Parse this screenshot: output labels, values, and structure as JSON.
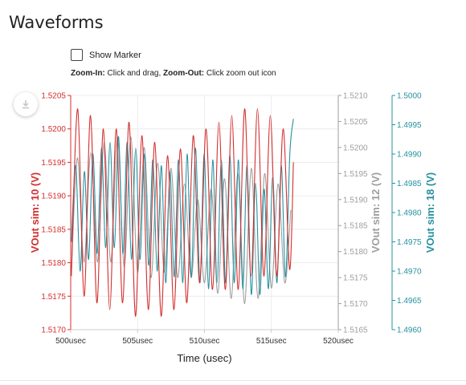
{
  "page": {
    "title": "Waveforms",
    "show_marker_label": "Show Marker",
    "show_marker_checked": false,
    "help_zoom_in_label": "Zoom-In:",
    "help_zoom_in_text": " Click and drag, ",
    "help_zoom_out_label": "Zoom-Out:",
    "help_zoom_out_text": " Click zoom out icon"
  },
  "icons": {
    "download": "download-icon"
  },
  "chart_data": {
    "type": "line",
    "xlabel": "Time (usec)",
    "xlim": [
      500,
      520
    ],
    "x_ticks": [
      500,
      505,
      510,
      515,
      520
    ],
    "x_tick_labels": [
      "500usec",
      "505usec",
      "510usec",
      "515usec",
      "520usec"
    ],
    "grid": true,
    "axes": [
      {
        "id": "y1",
        "side": "left",
        "label": "VOut sim: 10 (V)",
        "color": "#d32f2f",
        "ylim": [
          1.517,
          1.5205
        ],
        "ticks": [
          "1.5170",
          "1.5175",
          "1.5180",
          "1.5185",
          "1.5190",
          "1.5195",
          "1.5200",
          "1.5205"
        ]
      },
      {
        "id": "y2",
        "side": "right",
        "label": "VOut sim: 12 (V)",
        "color": "#9e9e9e",
        "ylim": [
          1.5165,
          1.521
        ],
        "ticks": [
          "1.5165",
          "1.5170",
          "1.5175",
          "1.5180",
          "1.5185",
          "1.5190",
          "1.5195",
          "1.5200",
          "1.5205",
          "1.5210"
        ]
      },
      {
        "id": "y3",
        "side": "right-outer",
        "label": "VOut sim: 18 (V)",
        "color": "#26919f",
        "ylim": [
          1.496,
          1.5
        ],
        "ticks": [
          "1.4960",
          "1.4965",
          "1.4970",
          "1.4975",
          "1.4980",
          "1.4985",
          "1.4990",
          "1.4995",
          "1.5000"
        ]
      }
    ],
    "series": [
      {
        "name": "VOut sim: 10 (V)",
        "axis": "y1",
        "color": "#d32f2f",
        "x": [
          500.05,
          500.52,
          501.0,
          501.48,
          501.96,
          502.44,
          502.92,
          503.4,
          503.88,
          504.36,
          504.84,
          505.32,
          505.8,
          506.28,
          506.76,
          507.24,
          507.72,
          508.2,
          508.68,
          509.16,
          509.64,
          510.12,
          510.6,
          511.08,
          511.56,
          512.04,
          512.52,
          513.0,
          513.48,
          513.96,
          514.44,
          514.92,
          515.4,
          515.88,
          516.36,
          516.65
        ],
        "y": [
          1.5178,
          1.5203,
          1.5175,
          1.5202,
          1.5174,
          1.52,
          1.5173,
          1.52,
          1.5174,
          1.5201,
          1.5172,
          1.5199,
          1.5173,
          1.5198,
          1.5172,
          1.5196,
          1.5173,
          1.5197,
          1.5174,
          1.5199,
          1.5177,
          1.52,
          1.5176,
          1.5201,
          1.5176,
          1.5202,
          1.5176,
          1.5203,
          1.5178,
          1.5203,
          1.5178,
          1.5202,
          1.5178,
          1.52,
          1.5179,
          1.5195
        ]
      },
      {
        "name": "VOut sim: 12 (V)",
        "axis": "y2",
        "color": "#9e9e9e",
        "x": [
          500.05,
          500.5,
          501.0,
          501.5,
          502.0,
          502.5,
          503.0,
          503.5,
          504.0,
          504.5,
          505.0,
          505.5,
          506.0,
          506.5,
          507.0,
          507.5,
          508.0,
          508.5,
          509.0,
          509.5,
          510.0,
          510.5,
          511.0,
          511.5,
          512.0,
          512.5,
          513.0,
          513.5,
          514.0,
          514.5,
          515.0,
          515.5,
          516.0,
          516.45
        ],
        "y": [
          1.5176,
          1.5198,
          1.5178,
          1.5199,
          1.5178,
          1.5201,
          1.5178,
          1.5202,
          1.5177,
          1.5202,
          1.5176,
          1.52,
          1.5175,
          1.5197,
          1.5176,
          1.5196,
          1.5175,
          1.5193,
          1.5175,
          1.519,
          1.5174,
          1.5192,
          1.5172,
          1.5194,
          1.5171,
          1.5195,
          1.517,
          1.5196,
          1.5171,
          1.5195,
          1.5173,
          1.5193,
          1.5174,
          1.5188
        ]
      },
      {
        "name": "VOut sim: 18 (V)",
        "axis": "y3",
        "color": "#26919f",
        "x": [
          500.05,
          500.38,
          500.7,
          501.02,
          501.34,
          501.66,
          501.98,
          502.3,
          502.62,
          502.94,
          503.26,
          503.58,
          503.9,
          504.22,
          504.54,
          504.86,
          505.18,
          505.5,
          505.82,
          506.14,
          506.46,
          506.78,
          507.1,
          507.42,
          507.74,
          508.06,
          508.38,
          508.7,
          509.02,
          509.34,
          509.66,
          509.98,
          510.3,
          510.62,
          510.94,
          511.26,
          511.58,
          511.9,
          512.22,
          512.54,
          512.86,
          513.18,
          513.5,
          513.82,
          514.14,
          514.46,
          514.78,
          515.1,
          515.42,
          515.74,
          516.06,
          516.38,
          516.65
        ],
        "y": [
          1.4975,
          1.4988,
          1.497,
          1.4987,
          1.4972,
          1.499,
          1.4973,
          1.4991,
          1.4974,
          1.4992,
          1.4974,
          1.4993,
          1.4973,
          1.4992,
          1.4972,
          1.4991,
          1.4972,
          1.499,
          1.4971,
          1.4989,
          1.497,
          1.4988,
          1.4968,
          1.4987,
          1.4969,
          1.4989,
          1.4968,
          1.499,
          1.4969,
          1.4991,
          1.4968,
          1.499,
          1.4967,
          1.4989,
          1.4968,
          1.4989,
          1.4968,
          1.499,
          1.4968,
          1.4989,
          1.4967,
          1.4988,
          1.4966,
          1.4985,
          1.4966,
          1.4984,
          1.4967,
          1.4986,
          1.4968,
          1.4988,
          1.4969,
          1.499,
          1.4996
        ]
      }
    ]
  }
}
